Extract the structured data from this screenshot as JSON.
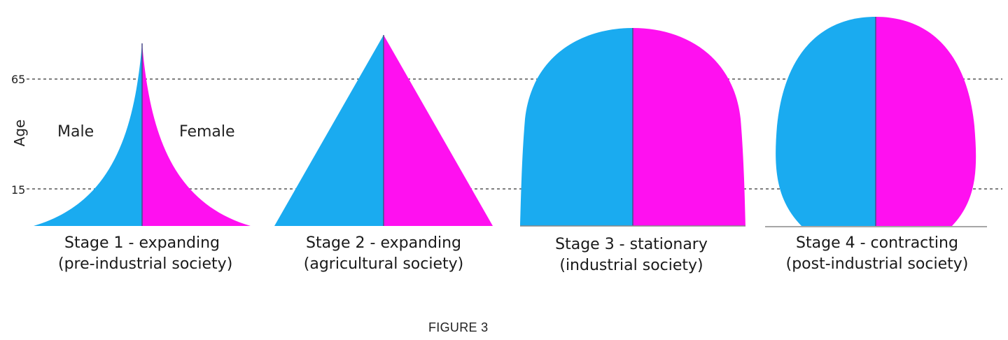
{
  "axis": {
    "label": "Age",
    "ticks": [
      "65",
      "15"
    ]
  },
  "sex_labels": {
    "male": "Male",
    "female": "Female"
  },
  "stages": [
    {
      "line1": "Stage 1 - expanding",
      "line2": "(pre-industrial society)"
    },
    {
      "line1": "Stage 2 - expanding",
      "line2": "(agricultural society)"
    },
    {
      "line1": "Stage 3 - stationary",
      "line2": "(industrial society)"
    },
    {
      "line1": "Stage 4 - contracting",
      "line2": "(post-industrial society)"
    }
  ],
  "caption": "FIGURE 3",
  "colors": {
    "male": "#1aabf0",
    "female": "#ff10f0",
    "guide": "#555555",
    "baseline": "#888888"
  }
}
